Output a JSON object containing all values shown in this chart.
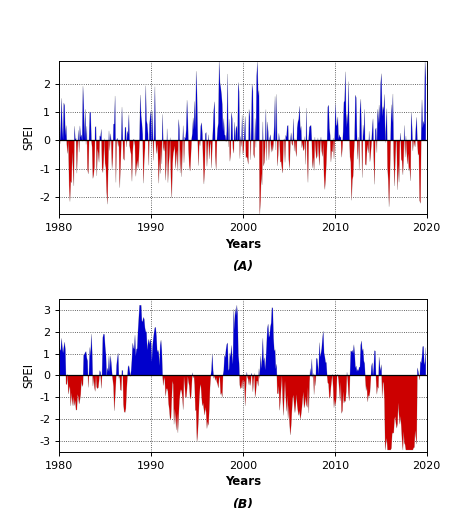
{
  "title_A": "(A)",
  "title_B": "(B)",
  "xlabel": "Years",
  "ylabel": "SPEI",
  "xlim": [
    1980,
    2020
  ],
  "ylim_A": [
    -2.6,
    2.8
  ],
  "ylim_B": [
    -3.5,
    3.5
  ],
  "yticks_A": [
    -2,
    -1,
    0,
    1,
    2
  ],
  "yticks_B": [
    -3,
    -2,
    -1,
    0,
    1,
    2,
    3
  ],
  "xticks": [
    1980,
    1990,
    2000,
    2010,
    2020
  ],
  "color_pos": "#0000CC",
  "color_neg": "#CC0000",
  "color_line": "#AAAAAA",
  "background": "#FFFFFF",
  "n_months": 480
}
